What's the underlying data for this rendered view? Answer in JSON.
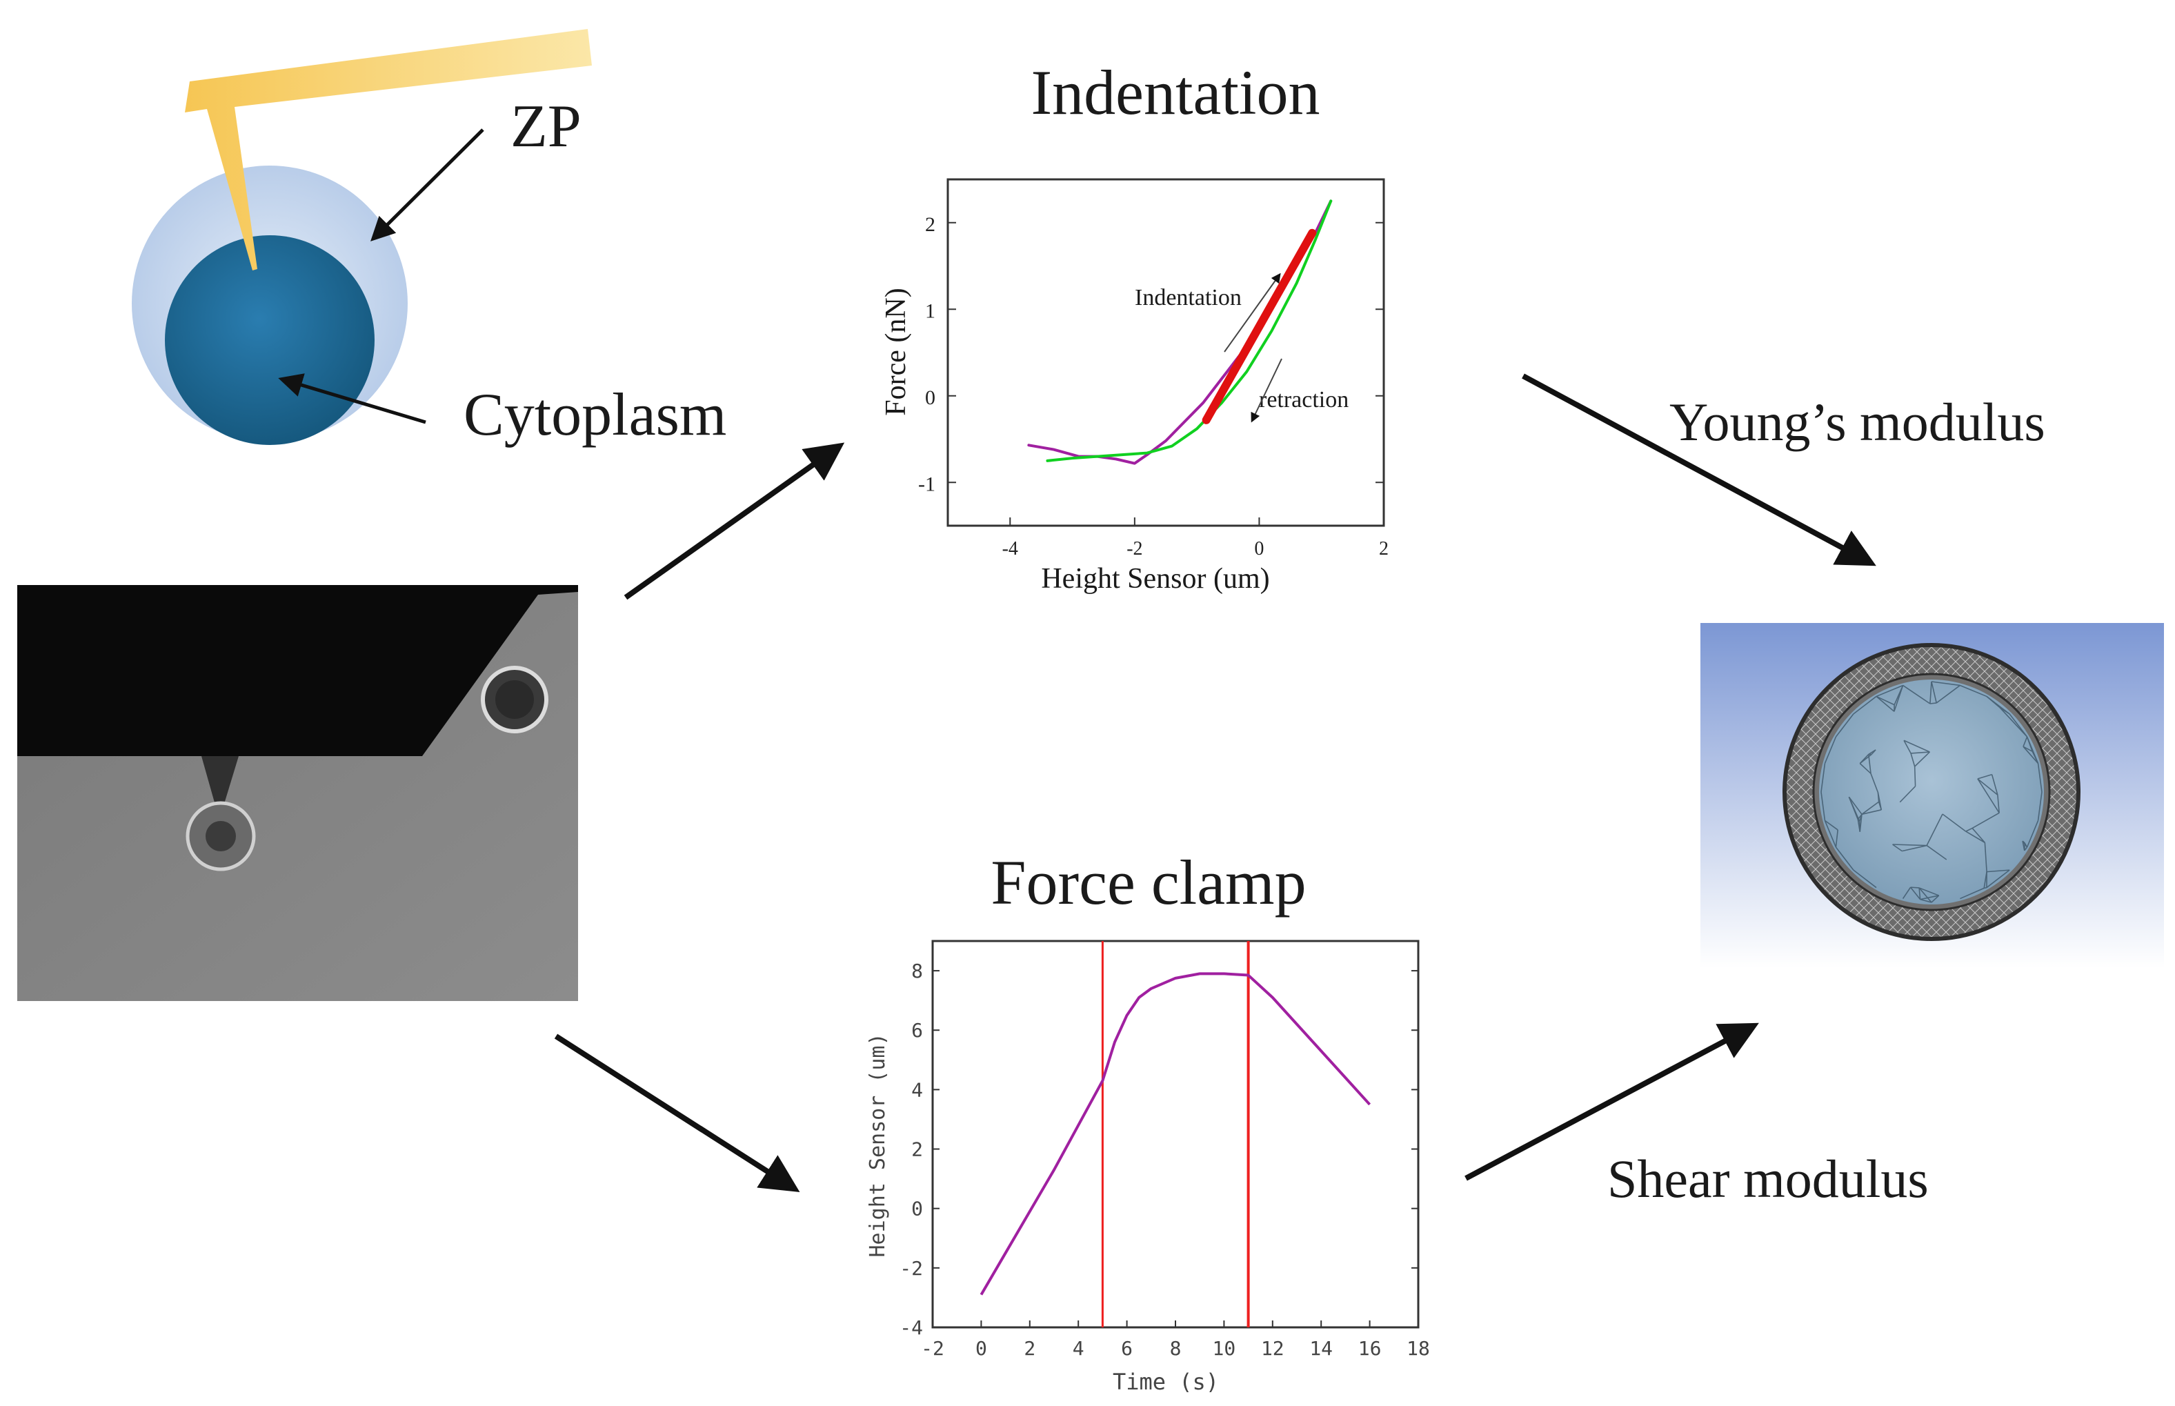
{
  "labels": {
    "zp": "ZP",
    "cytoplasm": "Cytoplasm",
    "youngs_modulus": "Young’s modulus",
    "shear_modulus": "Shear modulus"
  },
  "colors": {
    "zp_layer": "#c9d9ee",
    "cytoplasm": "#1f6d9e",
    "cantilever": "#f2b53b",
    "indent_approach": "#a020a0",
    "indent_retract": "#10d020",
    "indent_fit": "#e01010",
    "clamp_curve": "#a020a0",
    "clamp_markers": "#ee2020",
    "fe_background_top": "#7c97d4",
    "fe_background_bottom": "#ffffff"
  },
  "icons": [
    "cantilever-icon",
    "oocyte-icon",
    "microscope-image",
    "fe-mesh-model",
    "flow-arrow"
  ],
  "chart_data": [
    {
      "type": "line",
      "title": "Indentation",
      "xlabel": "Height Sensor (um)",
      "ylabel": "Force (nN)",
      "xlim": [
        -5,
        2
      ],
      "ylim": [
        -1.5,
        2.5
      ],
      "xticks": [
        -4,
        -2,
        0,
        2
      ],
      "yticks": [
        -1,
        0,
        1,
        2
      ],
      "annotations": [
        "Indentation",
        "retraction"
      ],
      "series": [
        {
          "x": [
            -3.7,
            -3.3,
            -2.9,
            -2.6,
            -2.3,
            -2.0,
            -1.8,
            -1.5,
            -1.2,
            -0.9,
            -0.6,
            -0.3,
            0.0,
            0.3,
            0.6,
            0.9,
            1.15
          ],
          "y": [
            -0.57,
            -0.62,
            -0.7,
            -0.7,
            -0.73,
            -0.78,
            -0.68,
            -0.52,
            -0.3,
            -0.08,
            0.2,
            0.48,
            0.8,
            1.15,
            1.5,
            1.88,
            2.25
          ]
        },
        {
          "x": [
            -3.4,
            -3.0,
            -2.6,
            -2.2,
            -1.8,
            -1.4,
            -1.0,
            -0.6,
            -0.2,
            0.2,
            0.6,
            0.9,
            1.15
          ],
          "y": [
            -0.75,
            -0.72,
            -0.7,
            -0.68,
            -0.66,
            -0.58,
            -0.38,
            -0.08,
            0.28,
            0.75,
            1.3,
            1.8,
            2.25
          ]
        },
        {
          "x": [
            -0.85,
            0.85
          ],
          "y": [
            -0.28,
            1.88
          ]
        }
      ]
    },
    {
      "type": "line",
      "title": "Force clamp",
      "xlabel": "Time (s)",
      "ylabel": "Height Sensor (um)",
      "xlim": [
        -2,
        18
      ],
      "ylim": [
        -4,
        9
      ],
      "xticks": [
        -2,
        0,
        2,
        4,
        6,
        8,
        10,
        12,
        14,
        16,
        18
      ],
      "yticks": [
        -4,
        -2,
        0,
        2,
        4,
        6,
        8
      ],
      "vlines": [
        5,
        11
      ],
      "series": [
        {
          "x": [
            0,
            1,
            2,
            3,
            4,
            5,
            5.5,
            6,
            6.5,
            7,
            8,
            9,
            10,
            11,
            12,
            13,
            14,
            15,
            16
          ],
          "y": [
            -2.9,
            -1.5,
            -0.1,
            1.3,
            2.8,
            4.3,
            5.6,
            6.5,
            7.1,
            7.4,
            7.75,
            7.9,
            7.9,
            7.85,
            7.1,
            6.2,
            5.3,
            4.4,
            3.5
          ]
        }
      ]
    }
  ]
}
